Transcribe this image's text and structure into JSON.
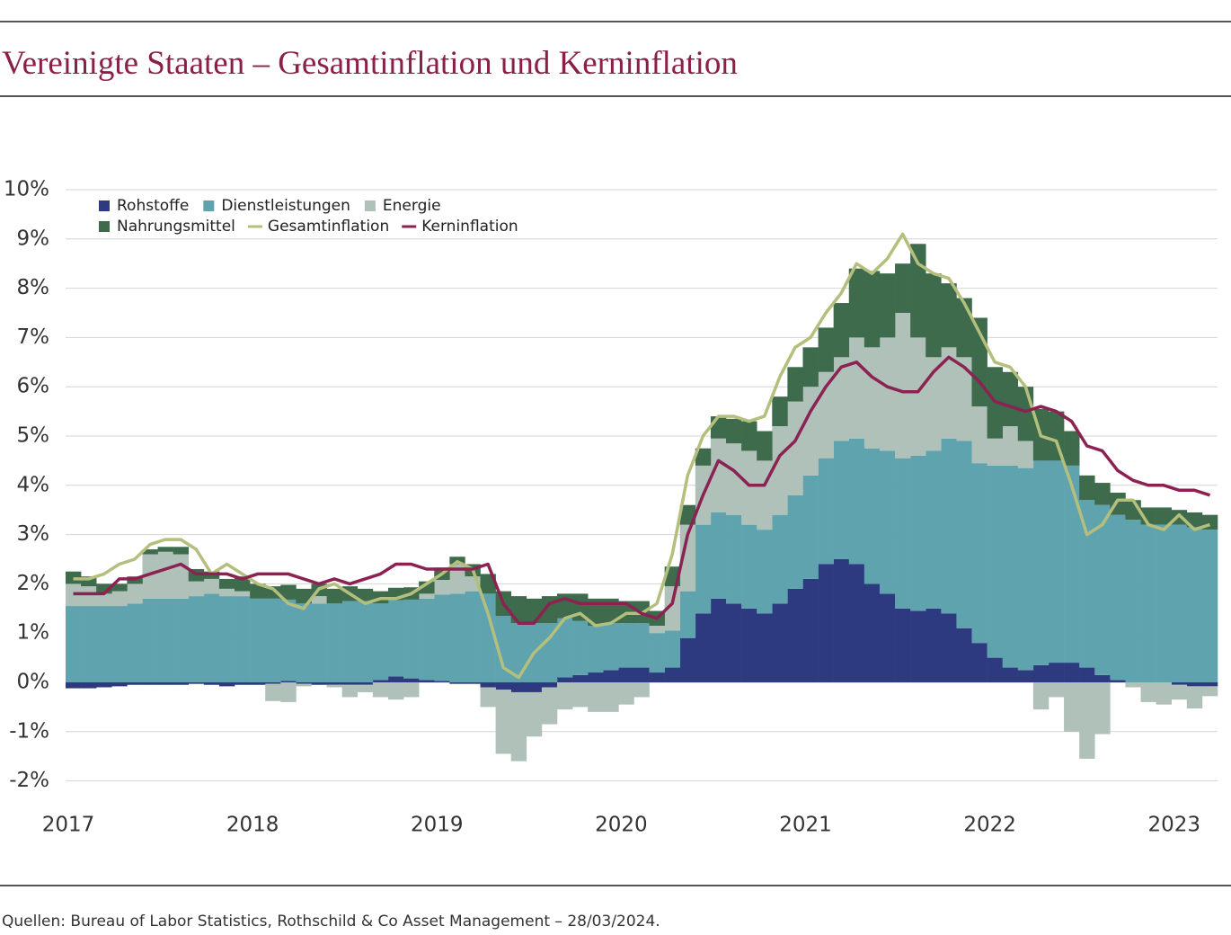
{
  "chart_data": {
    "type": "bar",
    "stacked": true,
    "title": "Vereinigte Staaten – Gesamtinflation und Kerninflation",
    "source": "Quellen: Bureau of Labor Statistics, Rothschild & Co Asset Management – 28/03/2024.",
    "categories": [
      "2017",
      null,
      null,
      null,
      null,
      null,
      null,
      null,
      null,
      null,
      null,
      null,
      "2018",
      null,
      null,
      null,
      null,
      null,
      null,
      null,
      null,
      null,
      null,
      null,
      "2019",
      null,
      null,
      null,
      null,
      null,
      null,
      null,
      null,
      null,
      null,
      null,
      "2020",
      null,
      null,
      null,
      null,
      null,
      null,
      null,
      null,
      null,
      null,
      null,
      "2021",
      null,
      null,
      null,
      null,
      null,
      null,
      null,
      null,
      null,
      null,
      null,
      "2022",
      null,
      null,
      null,
      null,
      null,
      null,
      null,
      null,
      null,
      null,
      null,
      "2023",
      null,
      null
    ],
    "ylim": [
      -2.5,
      10
    ],
    "yticks": [
      {
        "value": -2,
        "label": "-2%"
      },
      {
        "value": -1,
        "label": "-1%"
      },
      {
        "value": 0,
        "label": "0%"
      },
      {
        "value": 1,
        "label": "1%"
      },
      {
        "value": 2,
        "label": "2%"
      },
      {
        "value": 3,
        "label": "3%"
      },
      {
        "value": 4,
        "label": "4%"
      },
      {
        "value": 5,
        "label": "5%"
      },
      {
        "value": 6,
        "label": "6%"
      },
      {
        "value": 7,
        "label": "7%"
      },
      {
        "value": 8,
        "label": "8%"
      },
      {
        "value": 9,
        "label": "9%"
      },
      {
        "value": 10,
        "label": "10%"
      }
    ],
    "grid": true,
    "legend": "top-left",
    "series": [
      {
        "name": "Rohstoffe",
        "type": "bar",
        "color": "#2e3a80",
        "values": [
          -0.12,
          -0.12,
          -0.1,
          -0.08,
          -0.05,
          -0.05,
          -0.05,
          -0.05,
          -0.03,
          -0.05,
          -0.08,
          -0.05,
          -0.05,
          -0.03,
          0.03,
          -0.03,
          -0.05,
          -0.05,
          -0.05,
          -0.05,
          0.05,
          0.12,
          0.08,
          0.05,
          0.03,
          -0.03,
          -0.03,
          -0.1,
          -0.15,
          -0.2,
          -0.2,
          -0.1,
          0.1,
          0.15,
          0.2,
          0.25,
          0.3,
          0.3,
          0.2,
          0.3,
          0.9,
          1.4,
          1.7,
          1.6,
          1.5,
          1.4,
          1.6,
          1.9,
          2.1,
          2.4,
          2.5,
          2.4,
          2.0,
          1.8,
          1.5,
          1.45,
          1.5,
          1.4,
          1.1,
          0.8,
          0.5,
          0.3,
          0.25,
          0.35,
          0.4,
          0.4,
          0.3,
          0.15,
          0.05,
          0,
          0,
          0,
          -0.05,
          -0.08,
          -0.08
        ]
      },
      {
        "name": "Dienstleistungen",
        "type": "bar",
        "color": "#5fa3ae",
        "values": [
          1.55,
          1.55,
          1.55,
          1.55,
          1.6,
          1.7,
          1.7,
          1.7,
          1.75,
          1.8,
          1.75,
          1.75,
          1.7,
          1.7,
          1.65,
          1.6,
          1.6,
          1.6,
          1.65,
          1.65,
          1.55,
          1.55,
          1.6,
          1.65,
          1.75,
          1.8,
          1.85,
          1.8,
          1.35,
          1.2,
          1.2,
          1.2,
          1.2,
          1.1,
          0.95,
          0.95,
          0.9,
          0.9,
          0.8,
          0.75,
          0.95,
          1.8,
          1.75,
          1.8,
          1.7,
          1.7,
          1.8,
          1.9,
          2.1,
          2.15,
          2.4,
          2.55,
          2.75,
          2.9,
          3.05,
          3.15,
          3.2,
          3.55,
          3.8,
          3.65,
          3.9,
          4.1,
          4.1,
          4.15,
          4.1,
          4.0,
          3.4,
          3.45,
          3.35,
          3.3,
          3.2,
          3.2,
          3.2,
          3.15,
          3.1
        ]
      },
      {
        "name": "Energie",
        "type": "bar",
        "color": "#afc1b8",
        "values": [
          0.45,
          0.4,
          0.25,
          0.3,
          0.4,
          0.9,
          0.95,
          0.9,
          0.3,
          0.3,
          0.15,
          0.1,
          0,
          -0.35,
          -0.4,
          -0.05,
          0.15,
          -0.05,
          -0.25,
          -0.15,
          -0.3,
          -0.35,
          -0.3,
          0.1,
          0.3,
          0.6,
          0.3,
          -0.4,
          -1.3,
          -1.4,
          -0.9,
          -0.75,
          -0.55,
          -0.5,
          -0.6,
          -0.6,
          -0.45,
          -0.3,
          0.15,
          0.9,
          1.35,
          1.2,
          1.5,
          1.45,
          1.5,
          1.4,
          1.8,
          1.9,
          1.8,
          1.75,
          1.7,
          2.05,
          2.05,
          2.3,
          2.95,
          2.4,
          1.9,
          1.85,
          1.7,
          1.15,
          0.55,
          0.8,
          0.55,
          -0.55,
          -0.3,
          -1.0,
          -1.55,
          -1.05,
          0,
          -0.1,
          -0.4,
          -0.45,
          -0.3,
          -0.45,
          -0.2
        ]
      },
      {
        "name": "Nahrungsmittel",
        "type": "bar",
        "color": "#3d6b4c",
        "values": [
          0.25,
          0.2,
          0.2,
          0.15,
          0.15,
          0.1,
          0.1,
          0.15,
          0.25,
          0.15,
          0.2,
          0.3,
          0.3,
          0.25,
          0.3,
          0.3,
          0.25,
          0.3,
          0.3,
          0.25,
          0.25,
          0.25,
          0.25,
          0.25,
          0.25,
          0.15,
          0.25,
          0.4,
          0.5,
          0.55,
          0.5,
          0.55,
          0.5,
          0.55,
          0.55,
          0.5,
          0.45,
          0.45,
          0.3,
          0.4,
          0.4,
          0.35,
          0.45,
          0.5,
          0.6,
          0.6,
          0.6,
          0.7,
          0.8,
          0.9,
          1.1,
          1.4,
          1.55,
          1.3,
          1.0,
          1.9,
          1.7,
          1.3,
          1.2,
          1.8,
          1.45,
          1.1,
          1.1,
          1.05,
          1.0,
          0.7,
          0.5,
          0.45,
          0.45,
          0.4,
          0.35,
          0.35,
          0.3,
          0.3,
          0.3
        ]
      },
      {
        "name": "Gesamtinflation",
        "type": "line",
        "color": "#b5bf7d",
        "values": [
          2.1,
          2.1,
          2.2,
          2.4,
          2.5,
          2.8,
          2.9,
          2.9,
          2.7,
          2.2,
          2.4,
          2.2,
          2.0,
          1.9,
          1.6,
          1.5,
          1.9,
          2.0,
          1.8,
          1.6,
          1.7,
          1.7,
          1.8,
          2.0,
          2.2,
          2.45,
          2.3,
          1.4,
          0.3,
          0.1,
          0.6,
          0.9,
          1.3,
          1.4,
          1.15,
          1.2,
          1.4,
          1.4,
          1.6,
          2.6,
          4.2,
          5.0,
          5.4,
          5.4,
          5.3,
          5.4,
          6.2,
          6.8,
          7.0,
          7.5,
          7.9,
          8.5,
          8.3,
          8.6,
          9.1,
          8.5,
          8.3,
          8.2,
          7.7,
          7.1,
          6.5,
          6.4,
          6.0,
          5.0,
          4.9,
          4.0,
          3.0,
          3.2,
          3.7,
          3.7,
          3.2,
          3.1,
          3.4,
          3.1,
          3.2
        ]
      },
      {
        "name": "Kerninflation",
        "type": "line",
        "color": "#8b2252",
        "values": [
          1.8,
          1.8,
          1.8,
          2.1,
          2.1,
          2.2,
          2.3,
          2.4,
          2.2,
          2.2,
          2.2,
          2.1,
          2.2,
          2.2,
          2.2,
          2.1,
          2.0,
          2.1,
          2.0,
          2.1,
          2.2,
          2.4,
          2.4,
          2.3,
          2.3,
          2.3,
          2.3,
          2.4,
          1.6,
          1.2,
          1.2,
          1.6,
          1.7,
          1.6,
          1.6,
          1.6,
          1.6,
          1.4,
          1.3,
          1.6,
          3.0,
          3.8,
          4.5,
          4.3,
          4.0,
          4.0,
          4.6,
          4.9,
          5.5,
          6.0,
          6.4,
          6.5,
          6.2,
          6.0,
          5.9,
          5.9,
          6.3,
          6.6,
          6.4,
          6.1,
          5.7,
          5.6,
          5.5,
          5.6,
          5.5,
          5.3,
          4.8,
          4.7,
          4.3,
          4.1,
          4.0,
          4.0,
          3.9,
          3.9,
          3.8
        ]
      }
    ]
  }
}
